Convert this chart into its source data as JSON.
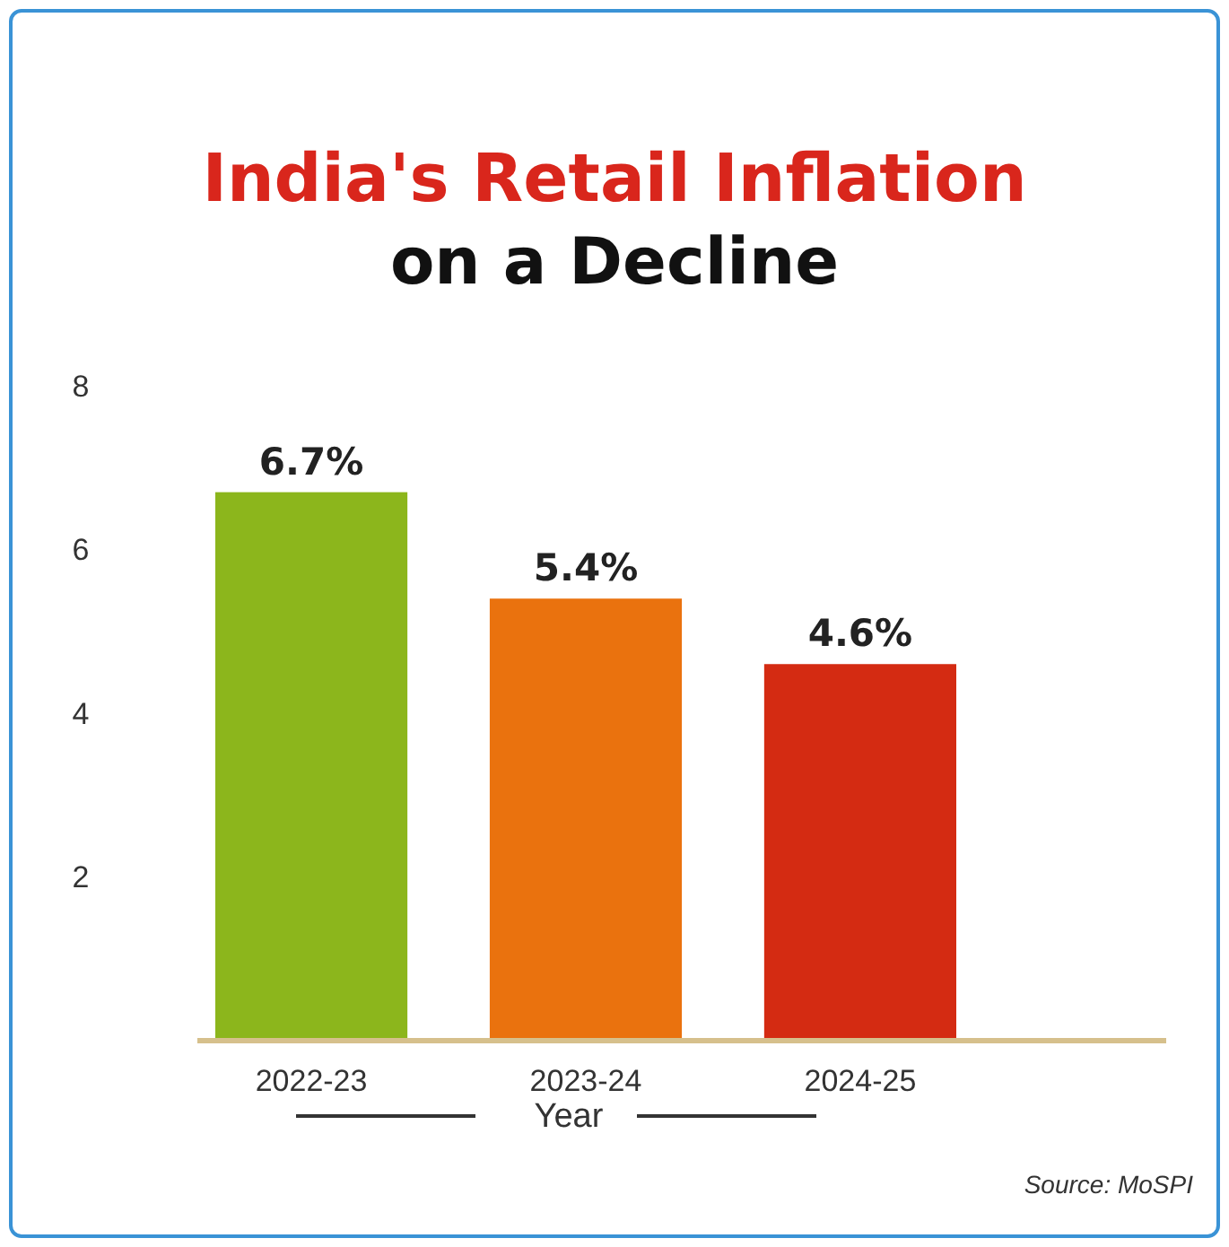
{
  "chart_data": {
    "type": "bar",
    "title": "India's Retail Inflation",
    "subtitle": "on a Decline",
    "xlabel": "Year",
    "categories": [
      "2022-23",
      "2023-24",
      "2024-25"
    ],
    "values": [
      6.7,
      5.4,
      4.6
    ],
    "colors": [
      "#8cb61c",
      "#ea720e",
      "#d42b12"
    ],
    "value_labels": [
      "6.7%",
      "5.4%",
      "4.6%"
    ],
    "ylim": [
      0,
      8
    ],
    "yticks": [
      2,
      4,
      6,
      8
    ],
    "grid": false,
    "annotations": [
      "Source: MoSPI"
    ]
  }
}
